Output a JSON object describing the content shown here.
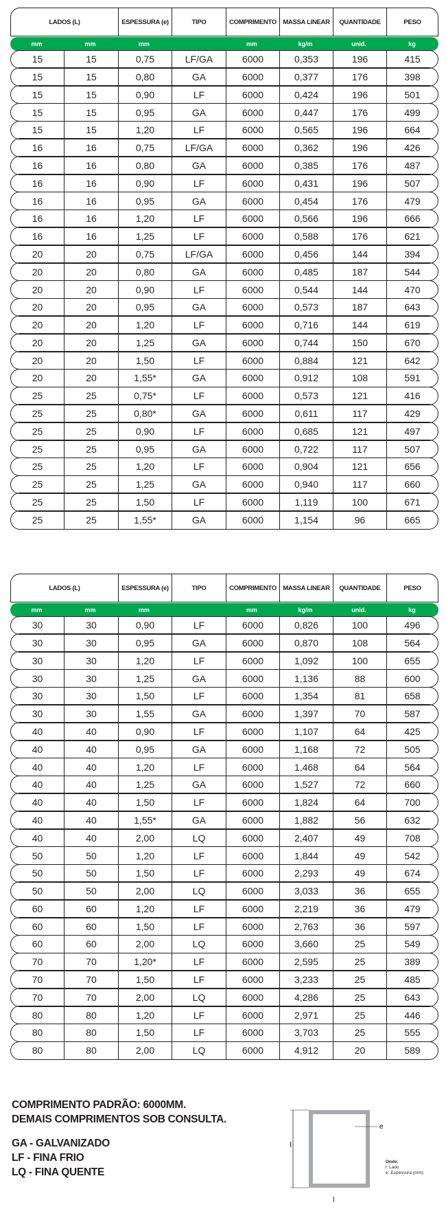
{
  "headers": {
    "lados": "LADOS (L)",
    "espessura": "ESPESSURA (e)",
    "tipo": "TIPO",
    "comprimento": "COMPRIMENTO",
    "massa": "MASSA LINEAR",
    "quantidade": "QUANTIDADE",
    "peso": "PESO"
  },
  "units": [
    "mm",
    "mm",
    "mm",
    "",
    "mm",
    "kg/m",
    "unid.",
    "kg"
  ],
  "accent_color": "#00a94f",
  "table1": [
    [
      "15",
      "15",
      "0,75",
      "LF/GA",
      "6000",
      "0,353",
      "196",
      "415"
    ],
    [
      "15",
      "15",
      "0,80",
      "GA",
      "6000",
      "0,377",
      "176",
      "398"
    ],
    [
      "15",
      "15",
      "0,90",
      "LF",
      "6000",
      "0,424",
      "196",
      "501"
    ],
    [
      "15",
      "15",
      "0,95",
      "GA",
      "6000",
      "0,447",
      "176",
      "499"
    ],
    [
      "15",
      "15",
      "1,20",
      "LF",
      "6000",
      "0,565",
      "196",
      "664"
    ],
    [
      "16",
      "16",
      "0,75",
      "LF/GA",
      "6000",
      "0,362",
      "196",
      "426"
    ],
    [
      "16",
      "16",
      "0,80",
      "GA",
      "6000",
      "0,385",
      "176",
      "487"
    ],
    [
      "16",
      "16",
      "0,90",
      "LF",
      "6000",
      "0,431",
      "196",
      "507"
    ],
    [
      "16",
      "16",
      "0,95",
      "GA",
      "6000",
      "0,454",
      "176",
      "479"
    ],
    [
      "16",
      "16",
      "1,20",
      "LF",
      "6000",
      "0,566",
      "196",
      "666"
    ],
    [
      "16",
      "16",
      "1,25",
      "LF",
      "6000",
      "0,588",
      "176",
      "621"
    ],
    [
      "20",
      "20",
      "0,75",
      "LF/GA",
      "6000",
      "0,456",
      "144",
      "394"
    ],
    [
      "20",
      "20",
      "0,80",
      "GA",
      "6000",
      "0,485",
      "187",
      "544"
    ],
    [
      "20",
      "20",
      "0,90",
      "LF",
      "6000",
      "0,544",
      "144",
      "470"
    ],
    [
      "20",
      "20",
      "0,95",
      "GA",
      "6000",
      "0,573",
      "187",
      "643"
    ],
    [
      "20",
      "20",
      "1,20",
      "LF",
      "6000",
      "0,716",
      "144",
      "619"
    ],
    [
      "20",
      "20",
      "1,25",
      "GA",
      "6000",
      "0,744",
      "150",
      "670"
    ],
    [
      "20",
      "20",
      "1,50",
      "LF",
      "6000",
      "0,884",
      "121",
      "642"
    ],
    [
      "20",
      "20",
      "1,55*",
      "GA",
      "6000",
      "0,912",
      "108",
      "591"
    ],
    [
      "25",
      "25",
      "0,75*",
      "LF",
      "6000",
      "0,573",
      "121",
      "416"
    ],
    [
      "25",
      "25",
      "0,80*",
      "GA",
      "6000",
      "0,611",
      "117",
      "429"
    ],
    [
      "25",
      "25",
      "0,90",
      "LF",
      "6000",
      "0,685",
      "121",
      "497"
    ],
    [
      "25",
      "25",
      "0,95",
      "GA",
      "6000",
      "0,722",
      "117",
      "507"
    ],
    [
      "25",
      "25",
      "1,20",
      "LF",
      "6000",
      "0,904",
      "121",
      "656"
    ],
    [
      "25",
      "25",
      "1,25",
      "GA",
      "6000",
      "0,940",
      "117",
      "660"
    ],
    [
      "25",
      "25",
      "1,50",
      "LF",
      "6000",
      "1,119",
      "100",
      "671"
    ],
    [
      "25",
      "25",
      "1,55*",
      "GA",
      "6000",
      "1,154",
      "96",
      "665"
    ]
  ],
  "table2": [
    [
      "30",
      "30",
      "0,90",
      "LF",
      "6000",
      "0,826",
      "100",
      "496"
    ],
    [
      "30",
      "30",
      "0,95",
      "GA",
      "6000",
      "0,870",
      "108",
      "564"
    ],
    [
      "30",
      "30",
      "1,20",
      "LF",
      "6000",
      "1,092",
      "100",
      "655"
    ],
    [
      "30",
      "30",
      "1,25",
      "GA",
      "6000",
      "1,136",
      "88",
      "600"
    ],
    [
      "30",
      "30",
      "1,50",
      "LF",
      "6000",
      "1,354",
      "81",
      "658"
    ],
    [
      "30",
      "30",
      "1,55",
      "GA",
      "6000",
      "1,397",
      "70",
      "587"
    ],
    [
      "40",
      "40",
      "0,90",
      "LF",
      "6000",
      "1,107",
      "64",
      "425"
    ],
    [
      "40",
      "40",
      "0,95",
      "GA",
      "6000",
      "1,168",
      "72",
      "505"
    ],
    [
      "40",
      "40",
      "1,20",
      "LF",
      "6000",
      "1,468",
      "64",
      "564"
    ],
    [
      "40",
      "40",
      "1,25",
      "GA",
      "6000",
      "1,527",
      "72",
      "660"
    ],
    [
      "40",
      "40",
      "1,50",
      "LF",
      "6000",
      "1,824",
      "64",
      "700"
    ],
    [
      "40",
      "40",
      "1,55*",
      "GA",
      "6000",
      "1,882",
      "56",
      "632"
    ],
    [
      "40",
      "40",
      "2,00",
      "LQ",
      "6000",
      "2,407",
      "49",
      "708"
    ],
    [
      "50",
      "50",
      "1,20",
      "LF",
      "6000",
      "1,844",
      "49",
      "542"
    ],
    [
      "50",
      "50",
      "1,50",
      "LF",
      "6000",
      "2,293",
      "49",
      "674"
    ],
    [
      "50",
      "50",
      "2,00",
      "LQ",
      "6000",
      "3,033",
      "36",
      "655"
    ],
    [
      "60",
      "60",
      "1,20",
      "LF",
      "6000",
      "2,219",
      "36",
      "479"
    ],
    [
      "60",
      "60",
      "1,50",
      "LF",
      "6000",
      "2,763",
      "36",
      "597"
    ],
    [
      "60",
      "60",
      "2,00",
      "LQ",
      "6000",
      "3,660",
      "25",
      "549"
    ],
    [
      "70",
      "70",
      "1,20*",
      "LF",
      "6000",
      "2,595",
      "25",
      "389"
    ],
    [
      "70",
      "70",
      "1,50",
      "LF",
      "6000",
      "3,233",
      "25",
      "485"
    ],
    [
      "70",
      "70",
      "2,00",
      "LQ",
      "6000",
      "4,286",
      "25",
      "643"
    ],
    [
      "80",
      "80",
      "1,20",
      "LF",
      "6000",
      "2,971",
      "25",
      "446"
    ],
    [
      "80",
      "80",
      "1,50",
      "LF",
      "6000",
      "3,703",
      "25",
      "555"
    ],
    [
      "80",
      "80",
      "2,00",
      "LQ",
      "6000",
      "4,912",
      "20",
      "589"
    ]
  ],
  "notes": {
    "line1": "COMPRIMENTO PADRÃO: 6000MM.",
    "line2": "DEMAIS COMPRIMENTOS SOB CONSULTA.",
    "ga": "GA - GALVANIZADO",
    "lf": "LF - FINA FRIO",
    "lq": "LQ - FINA QUENTE"
  },
  "diagram": {
    "label_e": "e",
    "label_l": "l",
    "legend_title": "Onde:",
    "legend_l": "l: Lado",
    "legend_e": "e: Espessura (mm)"
  }
}
